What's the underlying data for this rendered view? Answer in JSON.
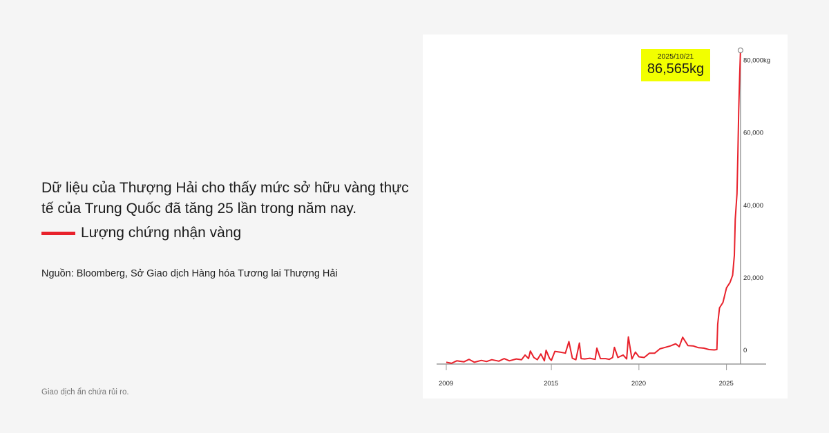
{
  "headline": "Dữ liệu của Thượng Hải cho thấy mức sở hữu vàng thực tế của Trung Quốc đã tăng 25 lần trong năm nay.",
  "source": "Nguồn: Bloomberg, Sở Giao dịch Hàng hóa Tương lai Thượng Hải",
  "footer": "Giao dịch ẩn chứa rủi ro.",
  "colors": {
    "series": "#e8212b",
    "callout": "#f2ff00",
    "background": "#f5f5f5",
    "panel": "#ffffff"
  },
  "chart_data": {
    "type": "line",
    "title": "",
    "xlabel": "",
    "ylabel": "",
    "xlim": [
      2008.8,
      2027.1
    ],
    "ylim": [
      -4000,
      87000
    ],
    "x_ticks": [
      2009,
      2015,
      2020,
      2025
    ],
    "x_tick_labels": [
      "2009",
      "2015",
      "2020",
      "2025"
    ],
    "y_ticks": [
      0,
      20000,
      40000,
      60000,
      80000
    ],
    "y_tick_labels": [
      "0",
      "20,000",
      "40,000",
      "60,000",
      "80,000kg"
    ],
    "grid": false,
    "legend": "left, outside",
    "series": [
      {
        "name": "Lượng chứng nhận vàng",
        "color": "#e8212b",
        "x": [
          2009.0,
          2009.3,
          2009.6,
          2010.0,
          2010.3,
          2010.6,
          2011.0,
          2011.3,
          2011.6,
          2012.0,
          2012.3,
          2012.6,
          2013.0,
          2013.3,
          2013.5,
          2013.7,
          2013.8,
          2014.0,
          2014.2,
          2014.4,
          2014.6,
          2014.7,
          2014.9,
          2015.0,
          2015.2,
          2015.5,
          2015.8,
          2016.0,
          2016.2,
          2016.4,
          2016.6,
          2016.7,
          2016.9,
          2017.2,
          2017.5,
          2017.6,
          2017.8,
          2018.1,
          2018.3,
          2018.5,
          2018.6,
          2018.8,
          2019.1,
          2019.3,
          2019.4,
          2019.6,
          2019.8,
          2020.0,
          2020.3,
          2020.6,
          2020.9,
          2021.2,
          2021.5,
          2021.8,
          2022.1,
          2022.3,
          2022.5,
          2022.8,
          2023.1,
          2023.4,
          2023.7,
          2024.0,
          2024.3,
          2024.45,
          2024.5,
          2024.6,
          2024.8,
          2025.0,
          2025.2,
          2025.35,
          2025.45,
          2025.5,
          2025.6,
          2025.65,
          2025.7,
          2025.75,
          2025.8
        ],
        "y": [
          500,
          200,
          900,
          600,
          1300,
          500,
          1000,
          700,
          1200,
          800,
          1500,
          900,
          1400,
          1200,
          2500,
          1500,
          3600,
          1800,
          1200,
          2800,
          900,
          3800,
          1500,
          1000,
          3500,
          3300,
          3000,
          6200,
          1600,
          1200,
          5800,
          1500,
          1400,
          1600,
          1300,
          4400,
          1500,
          1500,
          1300,
          1800,
          4600,
          1800,
          2500,
          1400,
          7500,
          1400,
          3300,
          2000,
          1800,
          3000,
          3000,
          4200,
          4600,
          5000,
          5600,
          4800,
          7400,
          5100,
          5000,
          4500,
          4400,
          4000,
          3900,
          4000,
          11000,
          15500,
          17000,
          21000,
          22500,
          24500,
          30000,
          40000,
          47000,
          58000,
          70000,
          79000,
          86565
        ]
      }
    ],
    "annotations": [
      {
        "x": 2025.8,
        "date": "2025/10/21",
        "value": "86,565kg"
      }
    ]
  }
}
